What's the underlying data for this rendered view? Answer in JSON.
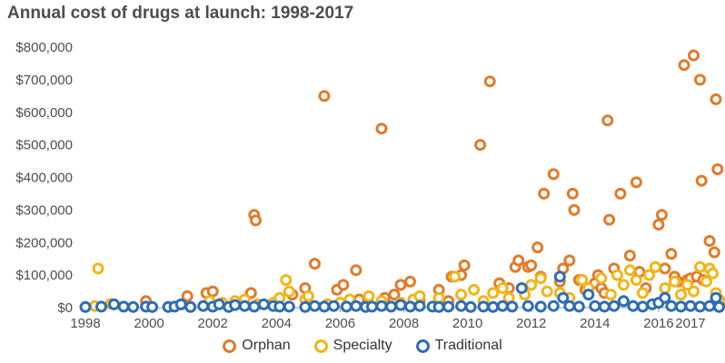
{
  "chart_data": {
    "type": "scatter",
    "title": "Annual cost of drugs at launch: 1998-2017",
    "xlabel": "",
    "ylabel": "",
    "xlim": [
      1998,
      2017.4
    ],
    "ylim": [
      0,
      800000
    ],
    "x_ticks": [
      {
        "value": 1998,
        "label": "1998"
      },
      {
        "value": 2000,
        "label": "2000"
      },
      {
        "value": 2002,
        "label": "2002"
      },
      {
        "value": 2004,
        "label": "2004"
      },
      {
        "value": 2006,
        "label": "2006"
      },
      {
        "value": 2008,
        "label": "2008"
      },
      {
        "value": 2010,
        "label": "2010"
      },
      {
        "value": 2012,
        "label": "2012"
      },
      {
        "value": 2014,
        "label": "2014"
      },
      {
        "value": 2016,
        "label": "2016"
      },
      {
        "value": 2017,
        "label": "2017"
      }
    ],
    "y_ticks": [
      {
        "value": 0,
        "label": "$0"
      },
      {
        "value": 100000,
        "label": "$100,000"
      },
      {
        "value": 200000,
        "label": "$200,000"
      },
      {
        "value": 300000,
        "label": "$300,000"
      },
      {
        "value": 400000,
        "label": "$400,000"
      },
      {
        "value": 500000,
        "label": "$500,000"
      },
      {
        "value": 600000,
        "label": "$600,000"
      },
      {
        "value": 700000,
        "label": "$700,000"
      },
      {
        "value": 800000,
        "label": "$800,000"
      }
    ],
    "grid": false,
    "legend_position": "bottom-center",
    "series": [
      {
        "name": "Orphan",
        "color": "#e07b2a",
        "points": [
          [
            1999.9,
            20000
          ],
          [
            2001.2,
            35000
          ],
          [
            2001.8,
            45000
          ],
          [
            2002.0,
            50000
          ],
          [
            2003.2,
            45000
          ],
          [
            2003.3,
            285000
          ],
          [
            2003.35,
            268000
          ],
          [
            2004.5,
            40000
          ],
          [
            2004.9,
            60000
          ],
          [
            2005.2,
            135000
          ],
          [
            2005.5,
            650000
          ],
          [
            2005.9,
            55000
          ],
          [
            2006.1,
            70000
          ],
          [
            2006.5,
            115000
          ],
          [
            2006.6,
            25000
          ],
          [
            2007.3,
            550000
          ],
          [
            2007.4,
            30000
          ],
          [
            2007.7,
            40000
          ],
          [
            2007.9,
            70000
          ],
          [
            2008.2,
            80000
          ],
          [
            2008.5,
            20000
          ],
          [
            2009.1,
            55000
          ],
          [
            2009.4,
            20000
          ],
          [
            2009.5,
            95000
          ],
          [
            2009.8,
            100000
          ],
          [
            2009.9,
            130000
          ],
          [
            2010.4,
            500000
          ],
          [
            2010.7,
            695000
          ],
          [
            2011.0,
            75000
          ],
          [
            2011.3,
            60000
          ],
          [
            2011.5,
            125000
          ],
          [
            2011.6,
            145000
          ],
          [
            2011.9,
            125000
          ],
          [
            2012.0,
            130000
          ],
          [
            2012.2,
            185000
          ],
          [
            2012.3,
            95000
          ],
          [
            2012.4,
            350000
          ],
          [
            2012.7,
            410000
          ],
          [
            2012.9,
            80000
          ],
          [
            2013.0,
            120000
          ],
          [
            2013.2,
            145000
          ],
          [
            2013.3,
            350000
          ],
          [
            2013.35,
            300000
          ],
          [
            2013.5,
            85000
          ],
          [
            2013.7,
            55000
          ],
          [
            2014.0,
            75000
          ],
          [
            2014.1,
            100000
          ],
          [
            2014.2,
            60000
          ],
          [
            2014.3,
            45000
          ],
          [
            2014.4,
            575000
          ],
          [
            2014.45,
            270000
          ],
          [
            2014.6,
            120000
          ],
          [
            2014.8,
            350000
          ],
          [
            2015.1,
            160000
          ],
          [
            2015.3,
            385000
          ],
          [
            2015.4,
            110000
          ],
          [
            2015.6,
            60000
          ],
          [
            2015.9,
            125000
          ],
          [
            2016.0,
            255000
          ],
          [
            2016.1,
            285000
          ],
          [
            2016.2,
            120000
          ],
          [
            2016.4,
            165000
          ],
          [
            2016.5,
            95000
          ],
          [
            2016.6,
            80000
          ],
          [
            2016.8,
            745000
          ],
          [
            2016.9,
            85000
          ],
          [
            2017.0,
            90000
          ],
          [
            2017.1,
            775000
          ],
          [
            2017.2,
            95000
          ],
          [
            2017.3,
            700000
          ],
          [
            2017.35,
            390000
          ],
          [
            2017.4,
            85000
          ],
          [
            2017.6,
            205000
          ],
          [
            2017.75,
            170000
          ],
          [
            2017.8,
            640000
          ],
          [
            2017.85,
            425000
          ],
          [
            2017.9,
            10000
          ]
        ]
      },
      {
        "name": "Specialty",
        "color": "#f2b51a",
        "points": [
          [
            1998.3,
            5000
          ],
          [
            1998.4,
            120000
          ],
          [
            1998.8,
            12000
          ],
          [
            2001.0,
            10000
          ],
          [
            2001.9,
            20000
          ],
          [
            2002.3,
            15000
          ],
          [
            2002.7,
            20000
          ],
          [
            2003.0,
            25000
          ],
          [
            2003.4,
            10000
          ],
          [
            2003.9,
            15000
          ],
          [
            2004.1,
            30000
          ],
          [
            2004.3,
            85000
          ],
          [
            2004.4,
            50000
          ],
          [
            2004.9,
            25000
          ],
          [
            2005.0,
            35000
          ],
          [
            2005.6,
            10000
          ],
          [
            2006.0,
            15000
          ],
          [
            2006.3,
            25000
          ],
          [
            2006.9,
            35000
          ],
          [
            2007.3,
            20000
          ],
          [
            2007.9,
            15000
          ],
          [
            2008.3,
            25000
          ],
          [
            2008.5,
            35000
          ],
          [
            2009.1,
            30000
          ],
          [
            2009.6,
            95000
          ],
          [
            2009.8,
            40000
          ],
          [
            2010.2,
            55000
          ],
          [
            2010.5,
            20000
          ],
          [
            2010.8,
            45000
          ],
          [
            2011.1,
            60000
          ],
          [
            2011.3,
            30000
          ],
          [
            2011.8,
            40000
          ],
          [
            2012.0,
            70000
          ],
          [
            2012.3,
            90000
          ],
          [
            2012.5,
            50000
          ],
          [
            2012.9,
            45000
          ],
          [
            2013.2,
            30000
          ],
          [
            2013.6,
            85000
          ],
          [
            2013.8,
            60000
          ],
          [
            2014.2,
            90000
          ],
          [
            2014.5,
            40000
          ],
          [
            2014.7,
            100000
          ],
          [
            2014.9,
            70000
          ],
          [
            2015.1,
            115000
          ],
          [
            2015.3,
            85000
          ],
          [
            2015.5,
            45000
          ],
          [
            2015.7,
            100000
          ],
          [
            2015.9,
            125000
          ],
          [
            2016.2,
            60000
          ],
          [
            2016.5,
            80000
          ],
          [
            2016.7,
            40000
          ],
          [
            2016.9,
            70000
          ],
          [
            2017.1,
            50000
          ],
          [
            2017.3,
            125000
          ],
          [
            2017.5,
            80000
          ],
          [
            2017.6,
            120000
          ],
          [
            2017.7,
            105000
          ],
          [
            2017.8,
            45000
          ],
          [
            2017.9,
            25000
          ]
        ]
      },
      {
        "name": "Traditional",
        "color": "#2f6db3",
        "points": [
          [
            1998.0,
            2000
          ],
          [
            1998.5,
            3000
          ],
          [
            1998.9,
            10000
          ],
          [
            1999.2,
            3000
          ],
          [
            1999.5,
            2000
          ],
          [
            1999.9,
            3000
          ],
          [
            2000.1,
            2000
          ],
          [
            2000.6,
            2000
          ],
          [
            2000.8,
            3000
          ],
          [
            2001.0,
            10000
          ],
          [
            2001.3,
            2000
          ],
          [
            2001.7,
            5000
          ],
          [
            2002.0,
            3000
          ],
          [
            2002.2,
            10000
          ],
          [
            2002.5,
            2000
          ],
          [
            2002.7,
            8000
          ],
          [
            2003.0,
            5000
          ],
          [
            2003.3,
            3000
          ],
          [
            2003.6,
            10000
          ],
          [
            2003.9,
            5000
          ],
          [
            2004.1,
            3000
          ],
          [
            2004.4,
            3000
          ],
          [
            2004.9,
            2000
          ],
          [
            2005.2,
            5000
          ],
          [
            2005.5,
            3000
          ],
          [
            2005.8,
            5000
          ],
          [
            2006.2,
            3000
          ],
          [
            2006.5,
            5000
          ],
          [
            2006.8,
            2000
          ],
          [
            2007.0,
            3000
          ],
          [
            2007.3,
            5000
          ],
          [
            2007.6,
            3000
          ],
          [
            2007.9,
            8000
          ],
          [
            2008.2,
            3000
          ],
          [
            2008.5,
            5000
          ],
          [
            2008.9,
            3000
          ],
          [
            2009.1,
            2000
          ],
          [
            2009.4,
            3000
          ],
          [
            2009.8,
            5000
          ],
          [
            2010.1,
            2000
          ],
          [
            2010.5,
            3000
          ],
          [
            2010.8,
            2000
          ],
          [
            2011.1,
            5000
          ],
          [
            2011.4,
            3000
          ],
          [
            2011.7,
            60000
          ],
          [
            2011.9,
            5000
          ],
          [
            2012.3,
            3000
          ],
          [
            2012.7,
            5000
          ],
          [
            2012.9,
            95000
          ],
          [
            2013.0,
            30000
          ],
          [
            2013.2,
            5000
          ],
          [
            2013.5,
            3000
          ],
          [
            2013.8,
            40000
          ],
          [
            2014.0,
            5000
          ],
          [
            2014.3,
            3000
          ],
          [
            2014.6,
            5000
          ],
          [
            2014.9,
            20000
          ],
          [
            2015.2,
            5000
          ],
          [
            2015.5,
            3000
          ],
          [
            2015.8,
            10000
          ],
          [
            2016.0,
            15000
          ],
          [
            2016.2,
            30000
          ],
          [
            2016.4,
            5000
          ],
          [
            2016.7,
            3000
          ],
          [
            2017.0,
            5000
          ],
          [
            2017.3,
            3000
          ],
          [
            2017.6,
            5000
          ],
          [
            2017.8,
            30000
          ],
          [
            2017.9,
            2000
          ]
        ]
      }
    ]
  }
}
